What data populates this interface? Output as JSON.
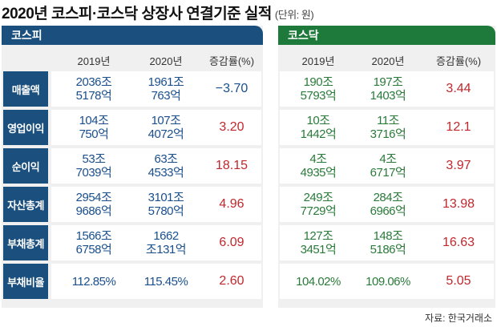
{
  "title": "2020년 코스피·코스닥 상장사 연결기준 실적",
  "unit": "(단위: 원)",
  "source": "자료: 한국거래소",
  "colors": {
    "kospi": "#1a4f7e",
    "kosdaq": "#1e7a3a",
    "increase": "#c0272d",
    "kospi_text": "#1a4f8c",
    "kosdaq_text": "#2a7a3a"
  },
  "kospi": {
    "name": "코스피",
    "headers": [
      "2019년",
      "2020년",
      "증감률(%)"
    ],
    "rows": [
      {
        "label": "매출액",
        "y2019": [
          "2036조",
          "5178억"
        ],
        "y2020": [
          "1961조",
          "763억"
        ],
        "change": "−3.70",
        "negative": true
      },
      {
        "label": "영업이익",
        "y2019": [
          "104조",
          "750억"
        ],
        "y2020": [
          "107조",
          "4072억"
        ],
        "change": "3.20"
      },
      {
        "label": "순이익",
        "y2019": [
          "53조",
          "7039억"
        ],
        "y2020": [
          "63조",
          "4533억"
        ],
        "change": "18.15"
      },
      {
        "label": "자산총계",
        "y2019": [
          "2954조",
          "9686억"
        ],
        "y2020": [
          "3101조",
          "5780억"
        ],
        "change": "4.96"
      },
      {
        "label": "부채총계",
        "y2019": [
          "1566조",
          "6758억"
        ],
        "y2020": [
          "1662",
          "조131억"
        ],
        "change": "6.09"
      },
      {
        "label": "부채비율",
        "y2019": [
          "112.85%"
        ],
        "y2020": [
          "115.45%"
        ],
        "change": "2.60"
      }
    ]
  },
  "kosdaq": {
    "name": "코스닥",
    "headers": [
      "2019년",
      "2020년",
      "증감률(%)"
    ],
    "rows": [
      {
        "y2019": [
          "190조",
          "5793억"
        ],
        "y2020": [
          "197조",
          "1403억"
        ],
        "change": "3.44"
      },
      {
        "y2019": [
          "10조",
          "1442억"
        ],
        "y2020": [
          "11조",
          "3716억"
        ],
        "change": "12.1"
      },
      {
        "y2019": [
          "4조",
          "4935억"
        ],
        "y2020": [
          "4조",
          "6717억"
        ],
        "change": "3.97"
      },
      {
        "y2019": [
          "249조",
          "7729억"
        ],
        "y2020": [
          "284조",
          "6966억"
        ],
        "change": "13.98"
      },
      {
        "y2019": [
          "127조",
          "3451억"
        ],
        "y2020": [
          "148조",
          "5186억"
        ],
        "change": "16.63"
      },
      {
        "y2019": [
          "104.02%"
        ],
        "y2020": [
          "109.06%"
        ],
        "change": "5.05"
      }
    ]
  }
}
